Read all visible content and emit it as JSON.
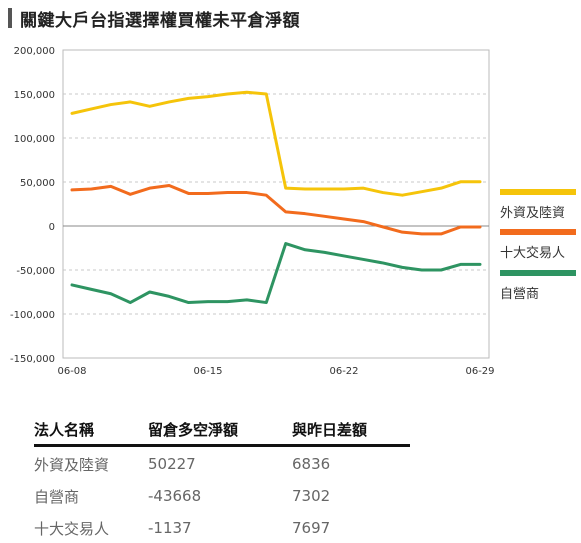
{
  "page": {
    "title": "關鍵大戶台指選擇權買權未平倉淨額"
  },
  "chart_data": {
    "type": "line",
    "x": [
      "06-08",
      "06-09",
      "06-10",
      "06-11",
      "06-12",
      "06-13",
      "06-14",
      "06-15",
      "06-16",
      "06-17",
      "06-18",
      "06-19",
      "06-20",
      "06-21",
      "06-22",
      "06-23",
      "06-24",
      "06-25",
      "06-26",
      "06-27",
      "06-28",
      "06-29"
    ],
    "xticks": [
      "06-08",
      "06-15",
      "06-22",
      "06-29"
    ],
    "ylim": [
      -150000,
      200000
    ],
    "yticks": [
      200000,
      150000,
      100000,
      50000,
      0,
      -50000,
      -100000,
      -150000
    ],
    "ytick_labels": [
      "200,000",
      "150,000",
      "100,000",
      "50,000",
      "0",
      "-50,000",
      "-100,000",
      "-150,000"
    ],
    "grid": true,
    "legend_position": "right",
    "series": [
      {
        "name": "外資及陸資",
        "color": "#f5c40a",
        "values": [
          128000,
          133000,
          138000,
          141000,
          136000,
          141000,
          145000,
          147000,
          150000,
          152000,
          150000,
          43000,
          42000,
          42000,
          42000,
          43000,
          38000,
          35000,
          39000,
          43000,
          50227,
          50227
        ]
      },
      {
        "name": "十大交易人",
        "color": "#f26b1d",
        "values": [
          41000,
          42000,
          45000,
          36000,
          43000,
          46000,
          37000,
          37000,
          38000,
          38000,
          35000,
          16000,
          14000,
          11000,
          8000,
          5000,
          -1000,
          -7000,
          -9000,
          -9000,
          -1137,
          -1137
        ]
      },
      {
        "name": "自營商",
        "color": "#2e9462",
        "values": [
          -67000,
          -72000,
          -77000,
          -87000,
          -75000,
          -80000,
          -87000,
          -86000,
          -86000,
          -84000,
          -87000,
          -20000,
          -27000,
          -30000,
          -34000,
          -38000,
          -42000,
          -47000,
          -50000,
          -50000,
          -43668,
          -43668
        ]
      }
    ]
  },
  "legend": {
    "items": [
      {
        "label": "外資及陸資",
        "color": "#f5c40a"
      },
      {
        "label": "十大交易人",
        "color": "#f26b1d"
      },
      {
        "label": "自營商",
        "color": "#2e9462"
      }
    ]
  },
  "table": {
    "headers": [
      "法人名稱",
      "留倉多空淨額",
      "與昨日差額"
    ],
    "rows": [
      [
        "外資及陸資",
        "50227",
        "6836"
      ],
      [
        "自營商",
        "-43668",
        "7302"
      ],
      [
        "十大交易人",
        "-1137",
        "7697"
      ]
    ]
  }
}
